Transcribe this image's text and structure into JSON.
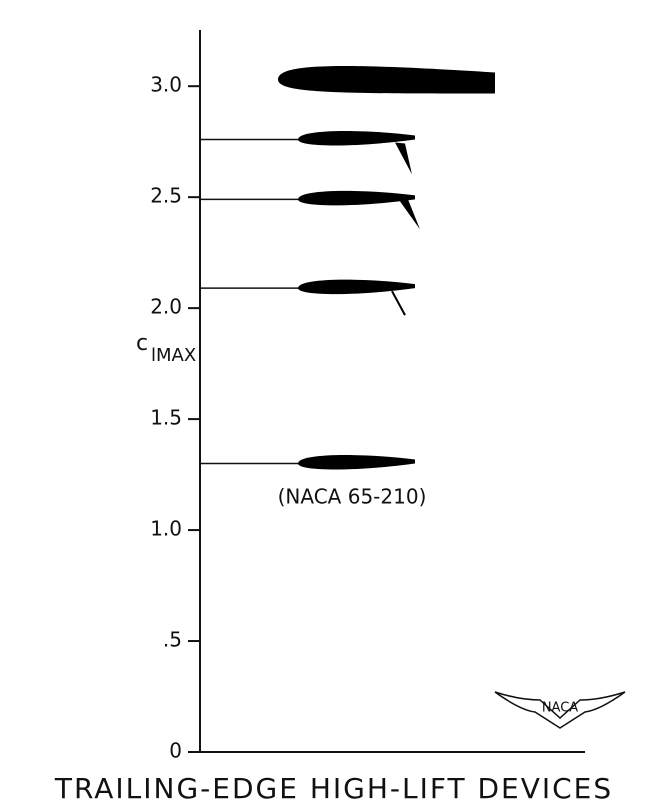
{
  "chart_data": {
    "type": "pictograph",
    "ylabel": "c",
    "ylabel_subscript": "lMAX",
    "xlabel": "TRAILING-EDGE HIGH-LIFT DEVICES",
    "annotation": "(NACA 65-210)",
    "logo": "NACA",
    "categories": [
      null,
      null,
      null,
      null,
      null
    ],
    "values": [
      1.3,
      2.09,
      2.49,
      2.76,
      3.03
    ],
    "color": "#000000",
    "ylim": [
      0,
      3.1
    ],
    "yticks": [
      0,
      {
        "value": 0.5,
        "label": ".5"
      },
      {
        "value": 1,
        "label": "1.0"
      },
      {
        "value": 1.5,
        "label": "1.5"
      },
      {
        "value": 2,
        "label": "2.0"
      },
      {
        "value": 2.5,
        "label": "2.5"
      },
      {
        "value": 3,
        "label": "3.0"
      }
    ],
    "grid": false
  }
}
